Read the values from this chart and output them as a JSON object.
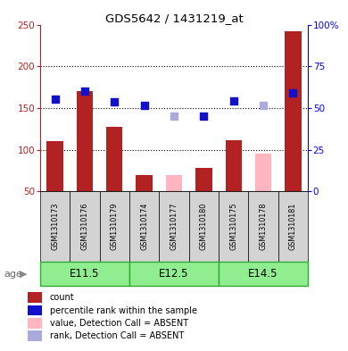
{
  "title": "GDS5642 / 1431219_at",
  "samples": [
    "GSM1310173",
    "GSM1310176",
    "GSM1310179",
    "GSM1310174",
    "GSM1310177",
    "GSM1310180",
    "GSM1310175",
    "GSM1310178",
    "GSM1310181"
  ],
  "red_bars": [
    110,
    170,
    127,
    69,
    null,
    78,
    111,
    null,
    242
  ],
  "pink_bars": [
    null,
    null,
    null,
    null,
    70,
    null,
    null,
    95,
    null
  ],
  "blue_dots": [
    161,
    170,
    157,
    153,
    null,
    140,
    158,
    null,
    168
  ],
  "light_blue_dots": [
    null,
    null,
    null,
    null,
    140,
    null,
    null,
    153,
    null
  ],
  "ylim_left": [
    50,
    250
  ],
  "ylim_right": [
    0,
    100
  ],
  "yticks_left": [
    50,
    100,
    150,
    200,
    250
  ],
  "yticks_right": [
    0,
    25,
    50,
    75,
    100
  ],
  "ytick_labels_right": [
    "0",
    "25",
    "50",
    "75",
    "100%"
  ],
  "grid_values": [
    100,
    150,
    200
  ],
  "bar_width": 0.55,
  "dot_size": 35,
  "red_color": "#B22222",
  "pink_color": "#FFB6C1",
  "blue_color": "#1111CC",
  "light_blue_color": "#AAAADD",
  "label_bg_color": "#D3D3D3",
  "group_fill_color": "#90EE90",
  "group_border_color": "#33AA33",
  "age_label": "age",
  "group_spans": [
    [
      0,
      2,
      "E11.5"
    ],
    [
      3,
      5,
      "E12.5"
    ],
    [
      6,
      8,
      "E14.5"
    ]
  ],
  "legend_labels": [
    "count",
    "percentile rank within the sample",
    "value, Detection Call = ABSENT",
    "rank, Detection Call = ABSENT"
  ],
  "legend_colors": [
    "#B22222",
    "#1111CC",
    "#FFB6C1",
    "#AAAADD"
  ]
}
